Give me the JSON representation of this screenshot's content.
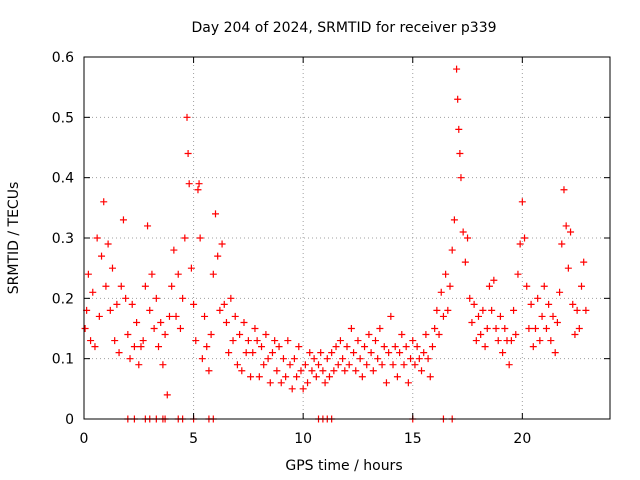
{
  "chart_data": {
    "type": "scatter",
    "title": "Day 204 of 2024, SRMTID for receiver p339",
    "xlabel": "GPS time / hours",
    "ylabel": "SRMTID / TECUs",
    "xlim": [
      0,
      24
    ],
    "ylim": [
      0,
      0.6
    ],
    "grid": true,
    "marker": "+",
    "color": "#ff0000",
    "xticks": [
      0,
      5,
      10,
      15,
      20
    ],
    "xtick_labels": [
      "0",
      "5",
      "10",
      "15",
      "20"
    ],
    "yticks": [
      0,
      0.1,
      0.2,
      0.3,
      0.4,
      0.5,
      0.6
    ],
    "ytick_labels": [
      "0",
      "0.1",
      "0.2",
      "0.3",
      "0.4",
      "0.5",
      "0.6"
    ],
    "series": [
      {
        "name": "SRMTID",
        "points": [
          [
            0.05,
            0.15
          ],
          [
            0.12,
            0.18
          ],
          [
            0.2,
            0.24
          ],
          [
            0.3,
            0.13
          ],
          [
            0.4,
            0.21
          ],
          [
            0.5,
            0.12
          ],
          [
            0.6,
            0.3
          ],
          [
            0.7,
            0.17
          ],
          [
            0.8,
            0.27
          ],
          [
            0.9,
            0.36
          ],
          [
            1.0,
            0.22
          ],
          [
            1.1,
            0.29
          ],
          [
            1.2,
            0.18
          ],
          [
            1.3,
            0.25
          ],
          [
            1.4,
            0.13
          ],
          [
            1.5,
            0.19
          ],
          [
            1.6,
            0.11
          ],
          [
            1.7,
            0.22
          ],
          [
            1.8,
            0.33
          ],
          [
            1.9,
            0.2
          ],
          [
            2.0,
            0.14
          ],
          [
            2.1,
            0.1
          ],
          [
            2.2,
            0.19
          ],
          [
            2.3,
            0.12
          ],
          [
            2.4,
            0.16
          ],
          [
            2.5,
            0.09
          ],
          [
            2.6,
            0.12
          ],
          [
            2.7,
            0.13
          ],
          [
            2.8,
            0.22
          ],
          [
            2.9,
            0.32
          ],
          [
            3.0,
            0.18
          ],
          [
            3.1,
            0.24
          ],
          [
            3.2,
            0.15
          ],
          [
            3.3,
            0.2
          ],
          [
            3.4,
            0.12
          ],
          [
            3.5,
            0.16
          ],
          [
            3.6,
            0.09
          ],
          [
            3.7,
            0.14
          ],
          [
            3.8,
            0.04
          ],
          [
            3.9,
            0.17
          ],
          [
            4.0,
            0.22
          ],
          [
            4.1,
            0.28
          ],
          [
            4.2,
            0.17
          ],
          [
            4.3,
            0.24
          ],
          [
            4.4,
            0.15
          ],
          [
            4.5,
            0.2
          ],
          [
            4.6,
            0.3
          ],
          [
            4.7,
            0.5
          ],
          [
            4.75,
            0.44
          ],
          [
            4.8,
            0.39
          ],
          [
            4.9,
            0.25
          ],
          [
            5.0,
            0.19
          ],
          [
            5.1,
            0.13
          ],
          [
            5.2,
            0.38
          ],
          [
            5.25,
            0.39
          ],
          [
            5.3,
            0.3
          ],
          [
            5.4,
            0.1
          ],
          [
            5.5,
            0.17
          ],
          [
            5.6,
            0.12
          ],
          [
            5.7,
            0.08
          ],
          [
            5.8,
            0.14
          ],
          [
            5.9,
            0.24
          ],
          [
            6.0,
            0.34
          ],
          [
            6.1,
            0.27
          ],
          [
            6.2,
            0.18
          ],
          [
            6.3,
            0.29
          ],
          [
            6.4,
            0.19
          ],
          [
            6.5,
            0.16
          ],
          [
            6.6,
            0.11
          ],
          [
            6.7,
            0.2
          ],
          [
            6.8,
            0.13
          ],
          [
            6.9,
            0.17
          ],
          [
            7.0,
            0.09
          ],
          [
            7.1,
            0.14
          ],
          [
            7.2,
            0.08
          ],
          [
            7.3,
            0.16
          ],
          [
            7.4,
            0.11
          ],
          [
            7.5,
            0.13
          ],
          [
            7.6,
            0.07
          ],
          [
            7.7,
            0.11
          ],
          [
            7.8,
            0.15
          ],
          [
            7.9,
            0.13
          ],
          [
            8.0,
            0.07
          ],
          [
            8.1,
            0.12
          ],
          [
            8.2,
            0.09
          ],
          [
            8.3,
            0.14
          ],
          [
            8.4,
            0.1
          ],
          [
            8.5,
            0.06
          ],
          [
            8.6,
            0.11
          ],
          [
            8.7,
            0.13
          ],
          [
            8.8,
            0.08
          ],
          [
            8.9,
            0.12
          ],
          [
            9.0,
            0.06
          ],
          [
            9.1,
            0.1
          ],
          [
            9.2,
            0.07
          ],
          [
            9.3,
            0.13
          ],
          [
            9.4,
            0.09
          ],
          [
            9.5,
            0.05
          ],
          [
            9.6,
            0.1
          ],
          [
            9.7,
            0.07
          ],
          [
            9.8,
            0.12
          ],
          [
            9.9,
            0.08
          ],
          [
            10.0,
            0.05
          ],
          [
            10.1,
            0.09
          ],
          [
            10.2,
            0.06
          ],
          [
            10.3,
            0.11
          ],
          [
            10.4,
            0.08
          ],
          [
            10.5,
            0.1
          ],
          [
            10.6,
            0.07
          ],
          [
            10.7,
            0.09
          ],
          [
            10.8,
            0.11
          ],
          [
            10.9,
            0.08
          ],
          [
            11.0,
            0.06
          ],
          [
            11.1,
            0.1
          ],
          [
            11.2,
            0.07
          ],
          [
            11.3,
            0.11
          ],
          [
            11.4,
            0.08
          ],
          [
            11.5,
            0.12
          ],
          [
            11.6,
            0.09
          ],
          [
            11.7,
            0.13
          ],
          [
            11.8,
            0.1
          ],
          [
            11.9,
            0.08
          ],
          [
            12.0,
            0.12
          ],
          [
            12.1,
            0.09
          ],
          [
            12.2,
            0.15
          ],
          [
            12.3,
            0.11
          ],
          [
            12.4,
            0.08
          ],
          [
            12.5,
            0.13
          ],
          [
            12.6,
            0.1
          ],
          [
            12.7,
            0.07
          ],
          [
            12.8,
            0.12
          ],
          [
            12.9,
            0.09
          ],
          [
            13.0,
            0.14
          ],
          [
            13.1,
            0.11
          ],
          [
            13.2,
            0.08
          ],
          [
            13.3,
            0.13
          ],
          [
            13.4,
            0.1
          ],
          [
            13.5,
            0.15
          ],
          [
            13.6,
            0.09
          ],
          [
            13.7,
            0.12
          ],
          [
            13.8,
            0.06
          ],
          [
            13.9,
            0.11
          ],
          [
            14.0,
            0.17
          ],
          [
            14.1,
            0.09
          ],
          [
            14.2,
            0.12
          ],
          [
            14.3,
            0.07
          ],
          [
            14.4,
            0.11
          ],
          [
            14.5,
            0.14
          ],
          [
            14.6,
            0.09
          ],
          [
            14.7,
            0.12
          ],
          [
            14.8,
            0.06
          ],
          [
            14.9,
            0.1
          ],
          [
            15.0,
            0.13
          ],
          [
            15.1,
            0.09
          ],
          [
            15.2,
            0.12
          ],
          [
            15.3,
            0.1
          ],
          [
            15.4,
            0.08
          ],
          [
            15.5,
            0.11
          ],
          [
            15.6,
            0.14
          ],
          [
            15.7,
            0.1
          ],
          [
            15.8,
            0.07
          ],
          [
            15.9,
            0.12
          ],
          [
            16.0,
            0.15
          ],
          [
            16.1,
            0.18
          ],
          [
            16.2,
            0.14
          ],
          [
            16.3,
            0.21
          ],
          [
            16.4,
            0.17
          ],
          [
            16.5,
            0.24
          ],
          [
            16.6,
            0.18
          ],
          [
            16.7,
            0.22
          ],
          [
            16.8,
            0.28
          ],
          [
            16.9,
            0.33
          ],
          [
            17.0,
            0.58
          ],
          [
            17.05,
            0.53
          ],
          [
            17.1,
            0.48
          ],
          [
            17.15,
            0.44
          ],
          [
            17.2,
            0.4
          ],
          [
            17.3,
            0.31
          ],
          [
            17.4,
            0.26
          ],
          [
            17.5,
            0.3
          ],
          [
            17.6,
            0.2
          ],
          [
            17.7,
            0.16
          ],
          [
            17.8,
            0.19
          ],
          [
            17.9,
            0.13
          ],
          [
            18.0,
            0.17
          ],
          [
            18.1,
            0.14
          ],
          [
            18.2,
            0.18
          ],
          [
            18.3,
            0.12
          ],
          [
            18.4,
            0.15
          ],
          [
            18.5,
            0.22
          ],
          [
            18.6,
            0.18
          ],
          [
            18.7,
            0.23
          ],
          [
            18.8,
            0.15
          ],
          [
            18.9,
            0.13
          ],
          [
            19.0,
            0.17
          ],
          [
            19.1,
            0.11
          ],
          [
            19.2,
            0.15
          ],
          [
            19.3,
            0.13
          ],
          [
            19.4,
            0.09
          ],
          [
            19.5,
            0.13
          ],
          [
            19.6,
            0.18
          ],
          [
            19.7,
            0.14
          ],
          [
            19.8,
            0.24
          ],
          [
            19.9,
            0.29
          ],
          [
            20.0,
            0.36
          ],
          [
            20.1,
            0.3
          ],
          [
            20.2,
            0.22
          ],
          [
            20.3,
            0.15
          ],
          [
            20.4,
            0.19
          ],
          [
            20.5,
            0.12
          ],
          [
            20.6,
            0.15
          ],
          [
            20.7,
            0.2
          ],
          [
            20.8,
            0.13
          ],
          [
            20.9,
            0.17
          ],
          [
            21.0,
            0.22
          ],
          [
            21.1,
            0.15
          ],
          [
            21.2,
            0.19
          ],
          [
            21.3,
            0.13
          ],
          [
            21.4,
            0.17
          ],
          [
            21.5,
            0.11
          ],
          [
            21.6,
            0.16
          ],
          [
            21.7,
            0.21
          ],
          [
            21.8,
            0.29
          ],
          [
            21.9,
            0.38
          ],
          [
            22.0,
            0.32
          ],
          [
            22.1,
            0.25
          ],
          [
            22.2,
            0.31
          ],
          [
            22.3,
            0.19
          ],
          [
            22.4,
            0.14
          ],
          [
            22.5,
            0.18
          ],
          [
            22.6,
            0.15
          ],
          [
            22.7,
            0.22
          ],
          [
            22.8,
            0.26
          ],
          [
            22.9,
            0.18
          ],
          [
            2.0,
            0.0
          ],
          [
            2.3,
            0.0
          ],
          [
            2.8,
            0.0
          ],
          [
            3.0,
            0.0
          ],
          [
            3.3,
            0.0
          ],
          [
            3.6,
            0.0
          ],
          [
            3.7,
            0.0
          ],
          [
            4.3,
            0.0
          ],
          [
            4.5,
            0.0
          ],
          [
            5.0,
            0.0
          ],
          [
            5.7,
            0.0
          ],
          [
            5.9,
            0.0
          ],
          [
            10.7,
            0.0
          ],
          [
            10.9,
            0.0
          ],
          [
            11.1,
            0.0
          ],
          [
            11.3,
            0.0
          ],
          [
            15.0,
            0.0
          ],
          [
            16.4,
            0.0
          ],
          [
            16.8,
            0.0
          ]
        ]
      }
    ]
  }
}
